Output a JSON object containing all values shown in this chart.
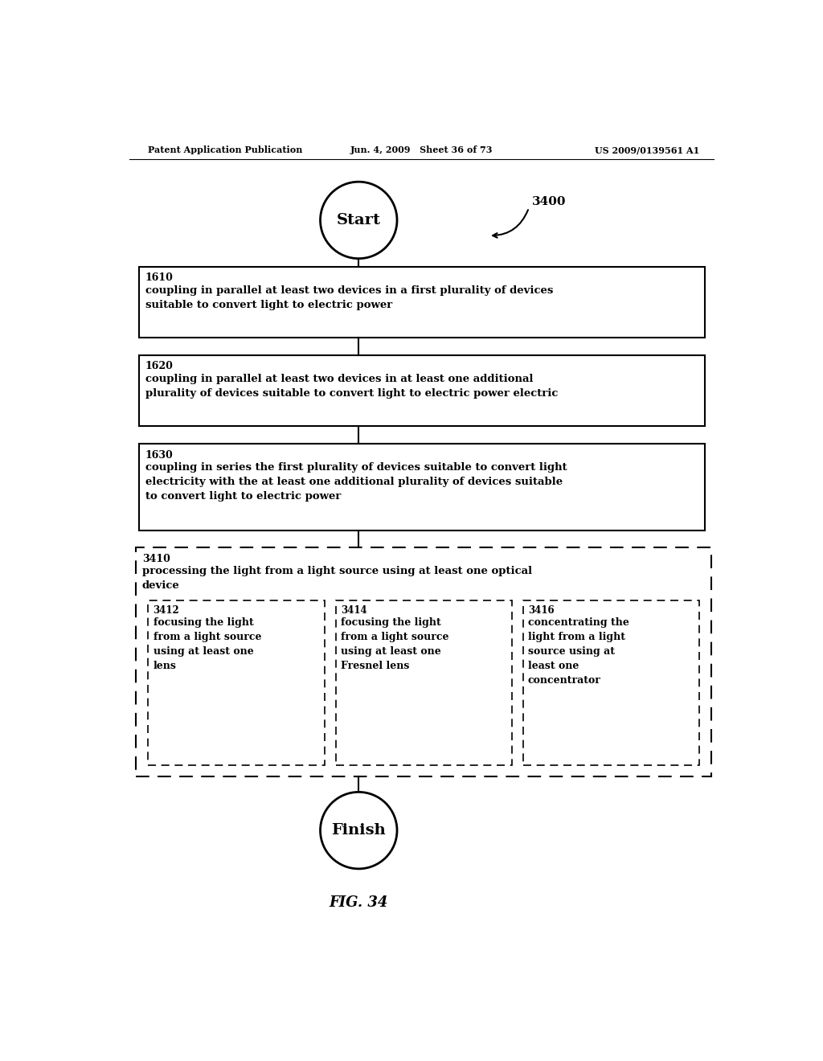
{
  "header_left": "Patent Application Publication",
  "header_mid": "Jun. 4, 2009   Sheet 36 of 73",
  "header_right": "US 2009/0139561 A1",
  "fig_label": "FIG. 34",
  "diagram_label": "3400",
  "start_text": "Start",
  "finish_text": "Finish",
  "box1_id": "1610",
  "box1_text": "coupling in parallel at least two devices in a first plurality of devices\nsuitable to convert light to electric power",
  "box2_id": "1620",
  "box2_text": "coupling in parallel at least two devices in at least one additional\nplurality of devices suitable to convert light to electric power electric",
  "box3_id": "1630",
  "box3_text": "coupling in series the first plurality of devices suitable to convert light\nelectricity with the at least one additional plurality of devices suitable\nto convert light to electric power",
  "outer_box_id": "3410",
  "outer_box_text": "processing the light from a light source using at least one optical\ndevice",
  "sub1_id": "3412",
  "sub1_text": "focusing the light\nfrom a light source\nusing at least one\nlens",
  "sub2_id": "3414",
  "sub2_text": "focusing the light\nfrom a light source\nusing at least one\nFresnel lens",
  "sub3_id": "3416",
  "sub3_text": "concentrating the\nlight from a light\nsource using at\nleast one\nconcentrator",
  "bg_color": "#ffffff",
  "text_color": "#000000"
}
